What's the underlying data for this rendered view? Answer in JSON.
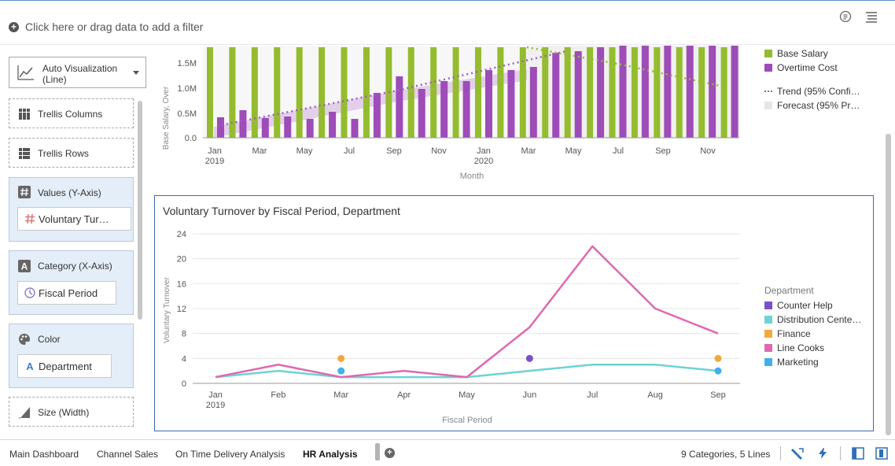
{
  "filter_bar": {
    "placeholder": "Click here or drag data to add a filter"
  },
  "sidebar": {
    "visualization": {
      "line1": "Auto Visualization",
      "line2": "(Line)"
    },
    "trellis_columns": "Trellis Columns",
    "trellis_rows": "Trellis Rows",
    "values": {
      "label": "Values (Y-Axis)",
      "chip": "Voluntary Tur…"
    },
    "category": {
      "label": "Category (X-Axis)",
      "chip": "Fiscal Period"
    },
    "color": {
      "label": "Color",
      "chip": "Department"
    },
    "size": {
      "label": "Size (Width)"
    }
  },
  "chart1": {
    "ylabel": "Base Salary, Over",
    "xlabel": "Month",
    "y_ticks": [
      "1.5M",
      "1.0M",
      "0.5M",
      "0.0"
    ],
    "x_ticks": [
      {
        "l1": "Jan",
        "l2": "2019"
      },
      {
        "l1": "Mar",
        "l2": ""
      },
      {
        "l1": "May",
        "l2": ""
      },
      {
        "l1": "Jul",
        "l2": ""
      },
      {
        "l1": "Sep",
        "l2": ""
      },
      {
        "l1": "Nov",
        "l2": ""
      },
      {
        "l1": "Jan",
        "l2": "2020"
      },
      {
        "l1": "Mar",
        "l2": ""
      },
      {
        "l1": "May",
        "l2": ""
      },
      {
        "l1": "Jul",
        "l2": ""
      },
      {
        "l1": "Sep",
        "l2": ""
      },
      {
        "l1": "Nov",
        "l2": ""
      }
    ],
    "legend": [
      {
        "label": "Base Salary",
        "color": "#94bc2e",
        "kind": "box"
      },
      {
        "label": "Overtime Cost",
        "color": "#9e4cb8",
        "kind": "box"
      },
      {
        "label": "Trend (95% Confi…",
        "color": "#777777",
        "kind": "dots"
      },
      {
        "label": "Forecast (95% Pr…",
        "color": "#e6e6e6",
        "kind": "box"
      }
    ]
  },
  "chart_data": {
    "type": "line",
    "title": "Voluntary Turnover by Fiscal Period, Department",
    "xlabel": "Fiscal Period",
    "ylabel": "Voluntary Turnover",
    "categories": [
      "Jan\n2019",
      "Feb",
      "Mar",
      "Apr",
      "May",
      "Jun",
      "Jul",
      "Aug",
      "Sep"
    ],
    "x_tick_lines": [
      {
        "l1": "Jan",
        "l2": "2019"
      },
      {
        "l1": "Feb",
        "l2": ""
      },
      {
        "l1": "Mar",
        "l2": ""
      },
      {
        "l1": "Apr",
        "l2": ""
      },
      {
        "l1": "May",
        "l2": ""
      },
      {
        "l1": "Jun",
        "l2": ""
      },
      {
        "l1": "Jul",
        "l2": ""
      },
      {
        "l1": "Aug",
        "l2": ""
      },
      {
        "l1": "Sep",
        "l2": ""
      }
    ],
    "y_ticks": [
      0,
      4,
      8,
      12,
      16,
      20,
      24
    ],
    "ylim": [
      0,
      24
    ],
    "grid": true,
    "legend_title": "Department",
    "legend_position": "right",
    "series": [
      {
        "name": "Counter Help",
        "color": "#7b4fc9",
        "values": [
          null,
          null,
          null,
          null,
          null,
          4,
          null,
          null,
          null
        ]
      },
      {
        "name": "Distribution Cente…",
        "color": "#6dd3d3",
        "values": [
          1,
          2,
          1,
          1,
          1,
          2,
          3,
          3,
          2
        ]
      },
      {
        "name": "Finance",
        "color": "#f2a93b",
        "values": [
          null,
          null,
          4,
          null,
          null,
          null,
          null,
          null,
          4
        ]
      },
      {
        "name": "Line Cooks",
        "color": "#e068b0",
        "values": [
          1,
          3,
          1,
          2,
          1,
          9,
          22,
          12,
          8
        ]
      },
      {
        "name": "Marketing",
        "color": "#3fb0ec",
        "values": [
          null,
          null,
          2,
          null,
          null,
          null,
          null,
          null,
          2
        ]
      }
    ]
  },
  "tabs": [
    {
      "label": "Main Dashboard",
      "active": false
    },
    {
      "label": "Channel Sales",
      "active": false
    },
    {
      "label": "On Time Delivery Analysis",
      "active": false
    },
    {
      "label": "HR Analysis",
      "active": true
    }
  ],
  "status": "9 Categories, 5 Lines"
}
